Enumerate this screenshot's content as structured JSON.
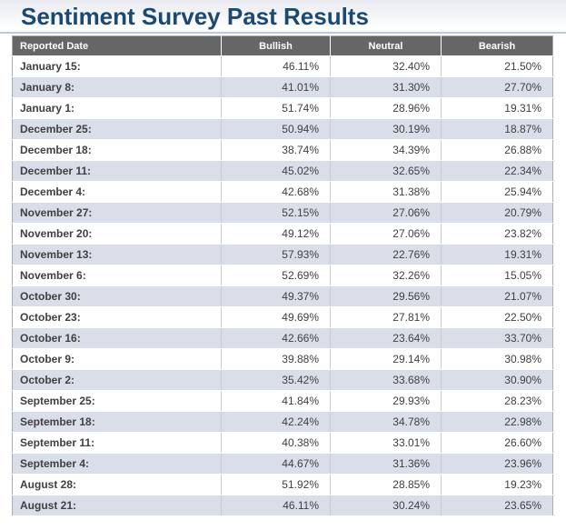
{
  "page": {
    "title": "Sentiment Survey Past Results"
  },
  "colors": {
    "title_text": "#1b4971",
    "title_divider": "#b7cbe0",
    "header_background": "#666666",
    "header_text": "#ffffff",
    "row_stripe": "#d9dee8",
    "body_text": "#404040",
    "page_gradient_top": "#e8eaf0"
  },
  "table": {
    "columns": [
      "Reported Date",
      "Bullish",
      "Neutral",
      "Bearish"
    ],
    "rows": [
      {
        "date": "January 15:",
        "bullish": "46.11%",
        "neutral": "32.40%",
        "bearish": "21.50%"
      },
      {
        "date": "January 8:",
        "bullish": "41.01%",
        "neutral": "31.30%",
        "bearish": "27.70%"
      },
      {
        "date": "January 1:",
        "bullish": "51.74%",
        "neutral": "28.96%",
        "bearish": "19.31%"
      },
      {
        "date": "December 25:",
        "bullish": "50.94%",
        "neutral": "30.19%",
        "bearish": "18.87%"
      },
      {
        "date": "December 18:",
        "bullish": "38.74%",
        "neutral": "34.39%",
        "bearish": "26.88%"
      },
      {
        "date": "December 11:",
        "bullish": "45.02%",
        "neutral": "32.65%",
        "bearish": "22.34%"
      },
      {
        "date": "December 4:",
        "bullish": "42.68%",
        "neutral": "31.38%",
        "bearish": "25.94%"
      },
      {
        "date": "November 27:",
        "bullish": "52.15%",
        "neutral": "27.06%",
        "bearish": "20.79%"
      },
      {
        "date": "November 20:",
        "bullish": "49.12%",
        "neutral": "27.06%",
        "bearish": "23.82%"
      },
      {
        "date": "November 13:",
        "bullish": "57.93%",
        "neutral": "22.76%",
        "bearish": "19.31%"
      },
      {
        "date": "November 6:",
        "bullish": "52.69%",
        "neutral": "32.26%",
        "bearish": "15.05%"
      },
      {
        "date": "October 30:",
        "bullish": "49.37%",
        "neutral": "29.56%",
        "bearish": "21.07%"
      },
      {
        "date": "October 23:",
        "bullish": "49.69%",
        "neutral": "27.81%",
        "bearish": "22.50%"
      },
      {
        "date": "October 16:",
        "bullish": "42.66%",
        "neutral": "23.64%",
        "bearish": "33.70%"
      },
      {
        "date": "October 9:",
        "bullish": "39.88%",
        "neutral": "29.14%",
        "bearish": "30.98%"
      },
      {
        "date": "October 2:",
        "bullish": "35.42%",
        "neutral": "33.68%",
        "bearish": "30.90%"
      },
      {
        "date": "September 25:",
        "bullish": "41.84%",
        "neutral": "29.93%",
        "bearish": "28.23%"
      },
      {
        "date": "September 18:",
        "bullish": "42.24%",
        "neutral": "34.78%",
        "bearish": "22.98%"
      },
      {
        "date": "September 11:",
        "bullish": "40.38%",
        "neutral": "33.01%",
        "bearish": "26.60%"
      },
      {
        "date": "September 4:",
        "bullish": "44.67%",
        "neutral": "31.36%",
        "bearish": "23.96%"
      },
      {
        "date": "August 28:",
        "bullish": "51.92%",
        "neutral": "28.85%",
        "bearish": "19.23%"
      },
      {
        "date": "August 21:",
        "bullish": "46.11%",
        "neutral": "30.24%",
        "bearish": "23.65%"
      }
    ]
  }
}
